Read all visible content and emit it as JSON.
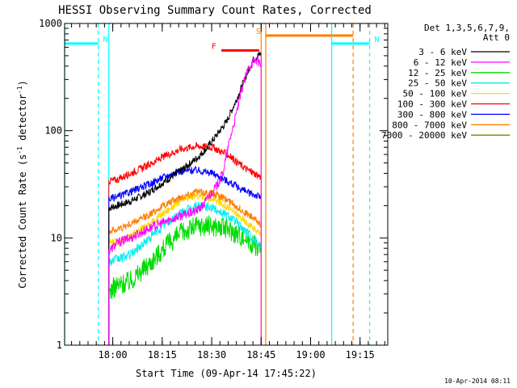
{
  "chart_data": {
    "type": "line",
    "title": "HESSI Observing Summary Count Rates, Corrected",
    "xlabel": "Start Time (09-Apr-14 17:45:22)",
    "ylabel_parts": [
      "Corrected Count Rate (s",
      "-1",
      " detector",
      "-1",
      ")"
    ],
    "ylabel": "Corrected Count Rate (s-1 detector-1)",
    "y_scale": "log",
    "ylim": [
      1,
      1000
    ],
    "xlim_minutes_from_start": [
      0,
      98
    ],
    "x_ticks": [
      {
        "label": "18:00",
        "t": 14.6
      },
      {
        "label": "18:15",
        "t": 29.6
      },
      {
        "label": "18:30",
        "t": 44.6
      },
      {
        "label": "18:45",
        "t": 59.6
      },
      {
        "label": "19:00",
        "t": 74.6
      },
      {
        "label": "19:15",
        "t": 89.6
      }
    ],
    "y_ticks": [
      {
        "label": "1",
        "v": 1
      },
      {
        "label": "10",
        "v": 10
      },
      {
        "label": "100",
        "v": 100
      },
      {
        "label": "1000",
        "v": 1000
      }
    ],
    "legend_header": [
      "Det 1,3,5,6,7,9,",
      "Att 0"
    ],
    "legend_position": "right",
    "series": [
      {
        "name": "3 - 6 keV",
        "color": "#000000",
        "x": [
          13.4,
          16,
          20,
          25,
          30,
          35,
          40,
          43,
          46,
          49,
          52,
          55,
          57,
          58.5,
          59.6
        ],
        "y": [
          19,
          20,
          22,
          26,
          33,
          42,
          55,
          68,
          90,
          120,
          190,
          320,
          450,
          500,
          520
        ]
      },
      {
        "name": "6 - 12 keV",
        "color": "#ff00ff",
        "x": [
          13.4,
          16,
          20,
          25,
          30,
          35,
          38,
          40,
          42,
          44,
          46,
          48,
          50,
          52,
          54,
          56,
          58,
          59.6
        ],
        "y": [
          7.5,
          9,
          10,
          12,
          14,
          16,
          17,
          18,
          20,
          25,
          30,
          40,
          80,
          140,
          260,
          400,
          460,
          420
        ]
      },
      {
        "name": "12 - 25 keV",
        "color": "#00dd00",
        "x": [
          13.4,
          16,
          20,
          25,
          30,
          35,
          40,
          45,
          50,
          55,
          59.6
        ],
        "y": [
          3.2,
          3.6,
          4,
          5.5,
          8,
          11,
          13,
          13,
          12,
          10,
          7.8
        ]
      },
      {
        "name": "25 - 50 keV",
        "color": "#00eeee",
        "x": [
          13.4,
          16,
          20,
          25,
          30,
          35,
          40,
          45,
          50,
          55,
          59.6
        ],
        "y": [
          6,
          6.3,
          7,
          9.5,
          13,
          17,
          20,
          19,
          16,
          11.5,
          8.5
        ]
      },
      {
        "name": "50 - 100 keV",
        "color": "#ffd700",
        "x": [
          13.4,
          16,
          20,
          25,
          30,
          35,
          40,
          45,
          50,
          55,
          59.6
        ],
        "y": [
          9,
          9.3,
          10.5,
          13,
          17,
          22,
          25,
          23,
          19,
          14,
          10.8
        ]
      },
      {
        "name": "100 - 300 keV",
        "color": "#ff0000",
        "x": [
          13.4,
          16,
          20,
          25,
          30,
          35,
          40,
          45,
          50,
          55,
          59.6
        ],
        "y": [
          34,
          35,
          40,
          47,
          57,
          67,
          72,
          70,
          58,
          44,
          37
        ]
      },
      {
        "name": "300 - 800 keV",
        "color": "#0000ff",
        "x": [
          13.4,
          16,
          20,
          25,
          30,
          35,
          40,
          45,
          50,
          55,
          59.6
        ],
        "y": [
          23,
          24,
          27,
          31,
          37,
          42,
          43,
          40,
          33,
          27,
          24
        ]
      },
      {
        "name": "800 - 7000 keV",
        "color": "#ff8000",
        "x": [
          13.4,
          16,
          20,
          25,
          30,
          35,
          40,
          45,
          50,
          55,
          59.6
        ],
        "y": [
          11.5,
          12,
          13.5,
          16,
          20,
          24,
          27,
          26,
          22,
          17,
          13.5
        ]
      },
      {
        "name": "7000 - 20000 keV",
        "color": "#808000",
        "x": [],
        "y": []
      }
    ],
    "flags": [
      {
        "label": "N",
        "color": "#00ffff",
        "x_start": 0,
        "x_end": 10.2,
        "y": 650
      },
      {
        "label": "N",
        "color": "#00ffff",
        "x_start": 81,
        "x_end": 92.5,
        "y": 650
      },
      {
        "label": "F",
        "color": "#ff0000",
        "x_start": 47.5,
        "x_end": 59,
        "y": 560
      },
      {
        "label": "S",
        "color": "#ff8000",
        "x_start": 61,
        "x_end": 87.5,
        "y": 770
      }
    ],
    "vertical_lines": [
      {
        "x": 0,
        "color": "#00ffff",
        "dash": false
      },
      {
        "x": 13.4,
        "color": "#00ffff",
        "dash": false
      },
      {
        "x": 10.2,
        "color": "#00ffff",
        "dash": true
      },
      {
        "x": 59.6,
        "color": "#ff8000",
        "dash": false
      },
      {
        "x": 61,
        "color": "#ff8000",
        "dash": false
      },
      {
        "x": 81,
        "color": "#00ffff",
        "dash": false
      },
      {
        "x": 87.5,
        "color": "#ff8000",
        "dash": true
      },
      {
        "x": 92.5,
        "color": "#00ffff",
        "dash": true
      }
    ],
    "footer": "10-Apr-2014 08:11"
  }
}
